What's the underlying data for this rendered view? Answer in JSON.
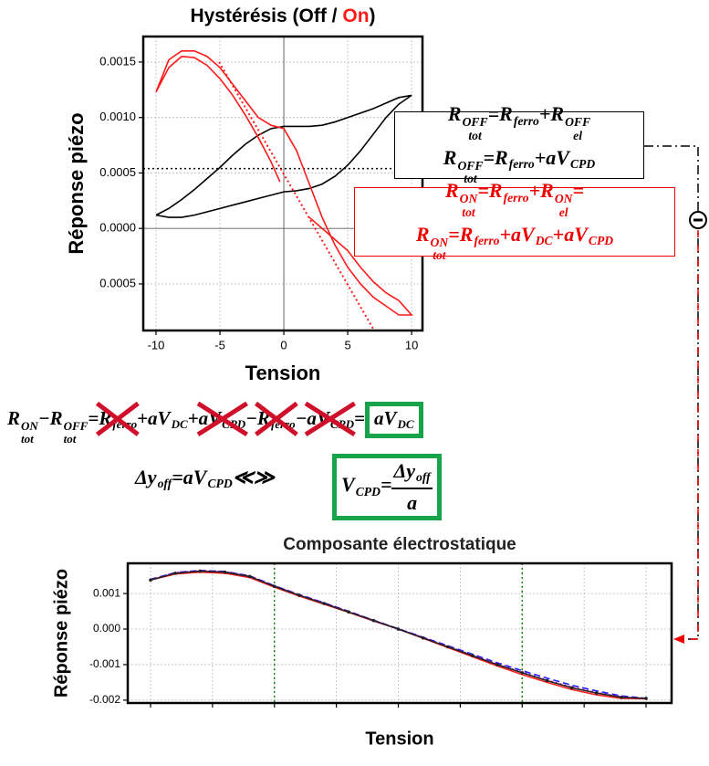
{
  "chart_data": [
    {
      "type": "line",
      "title_parts": [
        {
          "text": "Hystérésis (Off / ",
          "color": "#000000"
        },
        {
          "text": "On",
          "color": "#ff1a1a"
        },
        {
          "text": ")",
          "color": "#000000"
        }
      ],
      "xlabel": "Tension",
      "ylabel": "Réponse piézo",
      "xlim": [
        -11,
        10.85
      ],
      "ylim": [
        -0.00092,
        0.00173
      ],
      "xticks": [
        -10,
        -5,
        0,
        5,
        10
      ],
      "yticks": [
        0.0015,
        {
          "value": 0.001,
          "label": "0.0010"
        },
        0.0005,
        {
          "value": 0,
          "label": "0.0000"
        },
        {
          "value": -0.0005,
          "label": "0.0005"
        }
      ],
      "grid": true,
      "zero_lines": true,
      "hlines": [
        {
          "value": 0.00054,
          "color": "#000000"
        }
      ],
      "series": [
        {
          "color": "#000000",
          "dash": "solid",
          "x": [
            -10,
            -9,
            -8,
            -7,
            -6,
            -5,
            -4,
            -3,
            -2,
            -1,
            0,
            1,
            2,
            3,
            4,
            5,
            6,
            7,
            8,
            9,
            10,
            9,
            8,
            7,
            6,
            5,
            4,
            3,
            2,
            1,
            0,
            -1,
            -2,
            -3,
            -4,
            -5,
            -6,
            -7,
            -8,
            -9,
            -10
          ],
          "values": [
            0.00012,
            0.00018,
            0.00026,
            0.00035,
            0.00045,
            0.00055,
            0.00066,
            0.00076,
            0.00084,
            0.0009,
            0.00092,
            0.00092,
            0.00092,
            0.00093,
            0.00096,
            0.001,
            0.00104,
            0.00108,
            0.00113,
            0.00118,
            0.0012,
            0.00112,
            0.001,
            0.00085,
            0.0007,
            0.00057,
            0.00047,
            0.0004,
            0.00036,
            0.00034,
            0.00033,
            0.0003,
            0.00027,
            0.00024,
            0.00021,
            0.00018,
            0.00015,
            0.00012,
            0.0001,
            0.0001,
            0.00012
          ]
        },
        {
          "color": "#ff1a1a",
          "dash": "solid",
          "x": [
            -0.3,
            -1,
            -2,
            -3,
            -4,
            -5,
            -6,
            -7,
            -8,
            -9,
            -10,
            -9,
            -8,
            -7,
            -6,
            -5,
            -4,
            -3,
            -2,
            -1,
            0,
            1,
            2,
            3,
            4,
            5,
            6,
            7,
            8,
            9,
            10,
            9,
            8,
            7,
            6,
            5,
            4,
            3,
            2
          ],
          "values": [
            0.00042,
            0.0006,
            0.00082,
            0.00102,
            0.0012,
            0.00135,
            0.00147,
            0.00154,
            0.00155,
            0.00145,
            0.00123,
            0.00152,
            0.0016,
            0.0016,
            0.00155,
            0.00145,
            0.0013,
            0.00115,
            0.001,
            0.00093,
            0.0009,
            0.0007,
            0.0004,
            0.0001,
            -0.00015,
            -0.00035,
            -0.0005,
            -0.00062,
            -0.0007,
            -0.00078,
            -0.00078,
            -0.00065,
            -0.00058,
            -0.00048,
            -0.00035,
            -0.0002,
            -0.0001,
            0,
            0.0001
          ]
        },
        {
          "color": "#ff1a1a",
          "dash": "dotted",
          "x": [
            -5.07,
            7.07
          ],
          "values": [
            0.0015,
            -0.00092
          ]
        }
      ]
    },
    {
      "type": "line",
      "title": "Composante électrostatique",
      "xlabel": "Tension",
      "ylabel": "Réponse piézo",
      "xlim": [
        -10.92,
        11.03
      ],
      "ylim": [
        -0.00208,
        0.00185
      ],
      "xticks": [
        -10,
        -7.5,
        -5,
        -2.5,
        0,
        2.5,
        5,
        7.5,
        10
      ],
      "xtick_labels": false,
      "yticks": [
        0.001,
        {
          "value": 0,
          "label": "0.000"
        },
        -0.001,
        -0.002
      ],
      "grid": true,
      "vlines": [
        {
          "value": -5,
          "color": "#1a8a1a"
        },
        {
          "value": 5,
          "color": "#1a8a1a"
        }
      ],
      "x": [
        -10,
        -9,
        -8,
        -7,
        -6,
        -5,
        -4,
        -3,
        -2,
        -1,
        0,
        1,
        2,
        3,
        4,
        5,
        6,
        7,
        8,
        9,
        10
      ],
      "series": [
        {
          "color": "#ff2020",
          "dash": "solid",
          "values": [
            0.00138,
            0.00155,
            0.0016,
            0.00157,
            0.00145,
            0.00118,
            0.00093,
            0.0007,
            0.00047,
            0.00023,
            0,
            -0.00026,
            -0.00052,
            -0.00078,
            -0.00104,
            -0.00128,
            -0.0015,
            -0.0017,
            -0.00185,
            -0.00195,
            -0.00196
          ]
        },
        {
          "color": "#2020ff",
          "dash": "dashed",
          "values": [
            0.0014,
            0.00159,
            0.00165,
            0.00162,
            0.0015,
            0.00122,
            0.00097,
            0.00074,
            0.0005,
            0.00025,
            1e-05,
            -0.00023,
            -0.00047,
            -0.00071,
            -0.00095,
            -0.00117,
            -0.00138,
            -0.00158,
            -0.00174,
            -0.00188,
            -0.00195
          ]
        },
        {
          "color": "#cc00cc",
          "dash": "dotted",
          "values": [
            0.00139,
            0.00158,
            0.00164,
            0.00161,
            0.00149,
            0.00121,
            0.00096,
            0.00073,
            0.00049,
            0.00024,
            0,
            -0.00024,
            -0.00049,
            -0.00074,
            -0.00099,
            -0.00122,
            -0.00144,
            -0.00164,
            -0.00179,
            -0.00191,
            -0.00195
          ]
        },
        {
          "color": "#222222",
          "dash": "solid",
          "markers": true,
          "values": [
            0.00138,
            0.00157,
            0.00163,
            0.0016,
            0.00148,
            0.0012,
            0.00095,
            0.00072,
            0.00048,
            0.00024,
            0,
            -0.00025,
            -0.0005,
            -0.00075,
            -0.001,
            -0.00123,
            -0.00145,
            -0.00165,
            -0.0018,
            -0.00192,
            -0.00195
          ]
        }
      ]
    }
  ],
  "equations": {
    "off": {
      "color": "#000000",
      "lines": [
        [
          {
            "text": "R",
            "sub": "tot",
            "sup": "OFF"
          },
          {
            "text": " = "
          },
          {
            "text": "R",
            "sub": "ferro"
          },
          {
            "text": " + "
          },
          {
            "text": "R",
            "sub": "el",
            "sup": "OFF"
          }
        ],
        [
          {
            "text": "R",
            "sub": "tot",
            "sup": "OFF"
          },
          {
            "text": " = "
          },
          {
            "text": "R",
            "sub": "ferro"
          },
          {
            "text": " + "
          },
          {
            "text": "aV",
            "sub": "CPD"
          }
        ]
      ]
    },
    "on": {
      "color": "#ee0000",
      "lines": [
        [
          {
            "text": "R",
            "sub": "tot",
            "sup": "ON"
          },
          {
            "text": " = "
          },
          {
            "text": "R",
            "sub": "ferro"
          },
          {
            "text": " + "
          },
          {
            "text": "R",
            "sub": "el",
            "sup": "ON"
          },
          {
            "text": " ="
          }
        ],
        [
          {
            "text": "R",
            "sub": "tot",
            "sup": "ON"
          },
          {
            "text": " = "
          },
          {
            "text": "R",
            "sub": "ferro"
          },
          {
            "text": " + "
          },
          {
            "text": "aV",
            "sub": "DC"
          },
          {
            "text": " + "
          },
          {
            "text": "aV",
            "sub": "CPD"
          }
        ]
      ]
    },
    "difference": [
      {
        "text": "R",
        "sub": "tot",
        "sup": "ON"
      },
      {
        "text": "  − "
      },
      {
        "text": "R",
        "sub": "tot",
        "sup": "OFF"
      },
      {
        "text": " = "
      },
      {
        "text": "R",
        "sub": "ferro",
        "crossed": true
      },
      {
        "text": " + "
      },
      {
        "text": "aV",
        "sub": "DC"
      },
      {
        "text": " + "
      },
      {
        "text": "aV",
        "sub": "CPD",
        "crossed": true
      },
      {
        "text": " − "
      },
      {
        "text": "R",
        "sub": "ferro",
        "crossed": true
      },
      {
        "text": " − "
      },
      {
        "text": "aV",
        "sub": "CPD",
        "crossed": true
      },
      {
        "text": " = "
      },
      {
        "text": "aV",
        "sub": "DC",
        "boxed": true
      }
    ],
    "delta": [
      {
        "text": "Δy",
        "sub": "off"
      },
      {
        "text": "= "
      },
      {
        "text": "aV",
        "sub": "CPD"
      },
      {
        "text": " ≪≫"
      }
    ],
    "vcpd": {
      "lhs": [
        {
          "text": "V",
          "sub": "CPD"
        },
        {
          "text": " = "
        }
      ],
      "numerator": [
        {
          "text": "Δy",
          "sub": "off"
        }
      ],
      "denominator": [
        {
          "text": "a"
        }
      ]
    }
  }
}
